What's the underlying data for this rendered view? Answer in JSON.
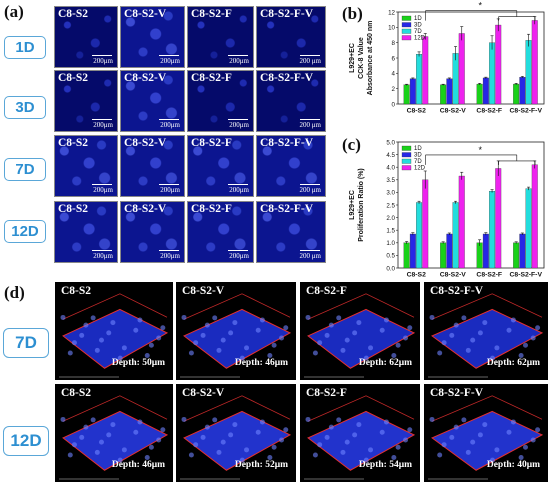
{
  "panels": {
    "a": "(a)",
    "b": "(b)",
    "c": "(c)",
    "d": "(d)"
  },
  "days": [
    "1D",
    "3D",
    "7D",
    "12D"
  ],
  "groups": [
    "C8-S2",
    "C8-S2-V",
    "C8-S2-F",
    "C8-S2-F-V"
  ],
  "scale_bars": [
    [
      "200μm",
      "200μm",
      "200μm",
      "200 μm"
    ],
    [
      "200μm",
      "200μm",
      "200μm",
      "200 μm"
    ],
    [
      "200μm",
      "200μm",
      "200μm",
      "200 μm"
    ],
    [
      "200μm",
      "200μm",
      "200μm",
      "200 μm"
    ]
  ],
  "panel_d": {
    "days": [
      "7D",
      "12D"
    ],
    "depths": [
      [
        "Depth: 50μm",
        "Depth: 46μm",
        "Depth: 62μm",
        "Depth: 62μm"
      ],
      [
        "Depth: 46μm",
        "Depth: 52μm",
        "Depth: 54μm",
        "Depth: 40μm"
      ]
    ]
  },
  "colors": {
    "1D": "#19d119",
    "3D": "#2626e6",
    "7D": "#22dddd",
    "12D": "#ee22ee",
    "tag": "#2d8fd1"
  },
  "chart_data": [
    {
      "type": "bar",
      "panel": "(b)",
      "categories": [
        "C8-S2",
        "C8-S2-V",
        "C8-S2-F",
        "C8-S2-F-V"
      ],
      "series": [
        {
          "name": "1D",
          "values": [
            2.5,
            2.5,
            2.6,
            2.6
          ]
        },
        {
          "name": "3D",
          "values": [
            3.3,
            3.3,
            3.4,
            3.5
          ]
        },
        {
          "name": "7D",
          "values": [
            6.5,
            6.6,
            8.0,
            8.3
          ]
        },
        {
          "name": "12D",
          "values": [
            8.8,
            9.2,
            10.3,
            10.9
          ]
        }
      ],
      "errors": [
        [
          0.08,
          0.08,
          0.1,
          0.1
        ],
        [
          0.1,
          0.1,
          0.1,
          0.1
        ],
        [
          0.3,
          0.9,
          0.9,
          0.8
        ],
        [
          0.4,
          0.9,
          0.8,
          0.5
        ]
      ],
      "ylabel_lines": [
        "L929+EC",
        "CCK-8 Value",
        "Absorbance at 450 nm"
      ],
      "ylim": [
        0,
        12
      ],
      "yticks": [
        0,
        2,
        4,
        6,
        8,
        10,
        12
      ],
      "significance": "*",
      "legend": "top-left"
    },
    {
      "type": "bar",
      "panel": "(c)",
      "categories": [
        "C8-S2",
        "C8-S2-V",
        "C8-S2-F",
        "C8-S2-F-V"
      ],
      "series": [
        {
          "name": "1D",
          "values": [
            1.0,
            1.0,
            1.0,
            1.0
          ]
        },
        {
          "name": "3D",
          "values": [
            1.35,
            1.35,
            1.35,
            1.35
          ]
        },
        {
          "name": "7D",
          "values": [
            2.6,
            2.6,
            3.05,
            3.15
          ]
        },
        {
          "name": "12D",
          "values": [
            3.5,
            3.65,
            3.95,
            4.1
          ]
        }
      ],
      "errors": [
        [
          0.05,
          0.04,
          0.12,
          0.04
        ],
        [
          0.05,
          0.04,
          0.05,
          0.04
        ],
        [
          0.05,
          0.05,
          0.06,
          0.06
        ],
        [
          0.35,
          0.15,
          0.3,
          0.15
        ]
      ],
      "ylabel_lines": [
        "L929+EC",
        "Proliferation Ratio (%)"
      ],
      "ylim": [
        0,
        5
      ],
      "yticks": [
        "0.0",
        "0.5",
        "1.0",
        "1.5",
        "2.0",
        "2.5",
        "3.0",
        "3.5",
        "4.0",
        "4.5",
        "5.0"
      ],
      "significance": "*",
      "legend": "top-left"
    }
  ]
}
